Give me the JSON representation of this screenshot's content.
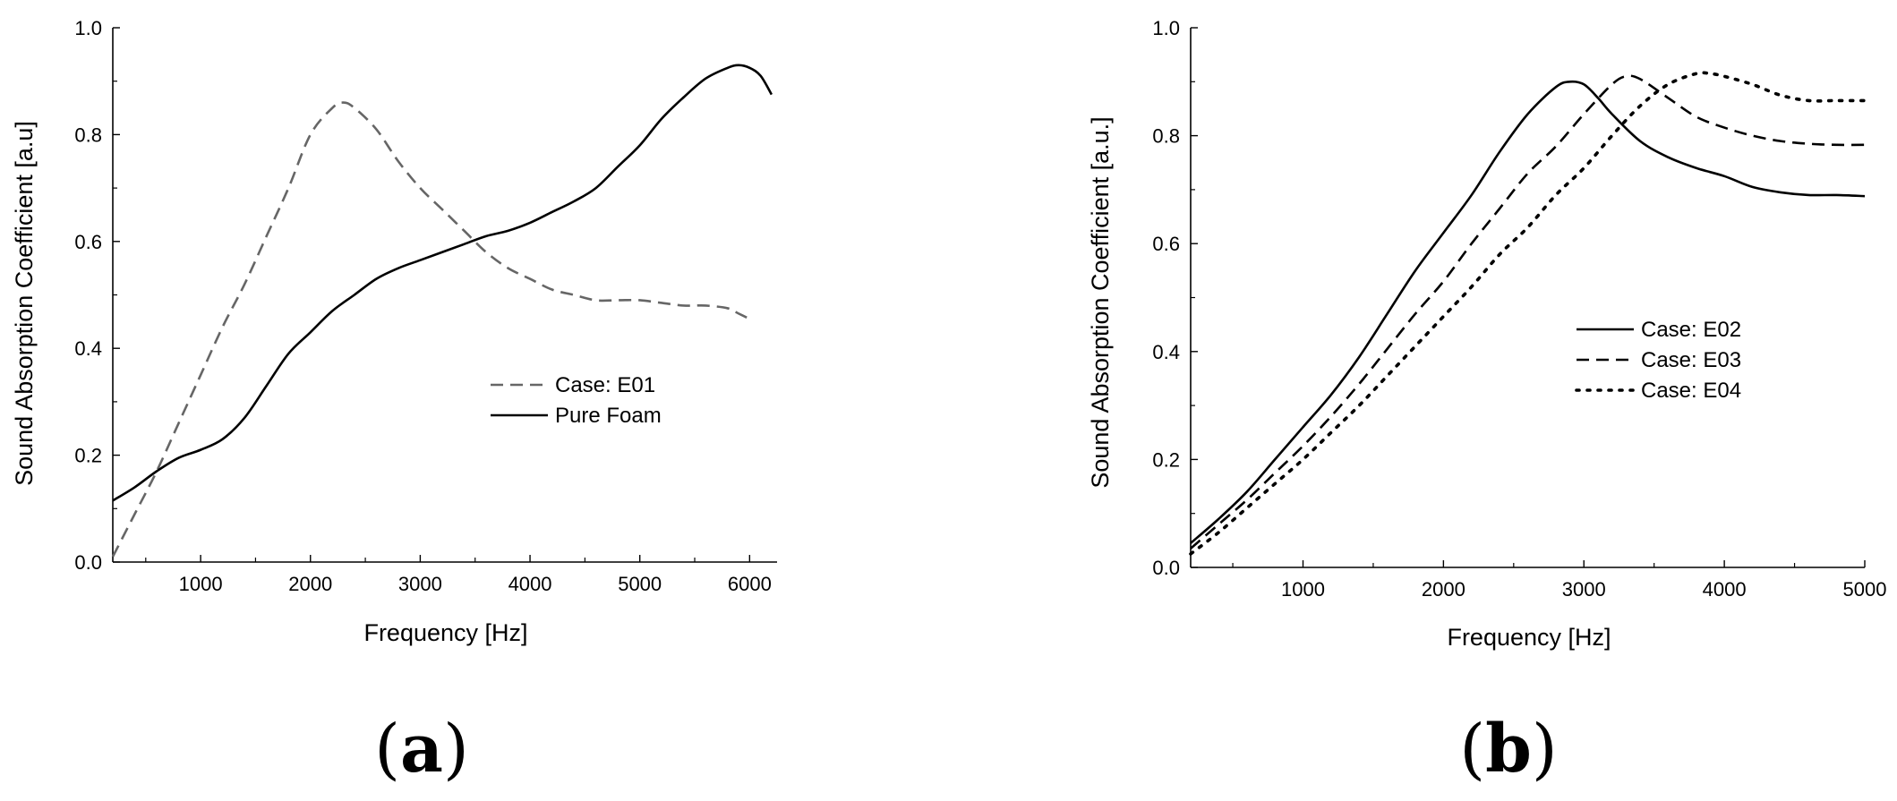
{
  "chart_data": [
    {
      "type": "line",
      "panel_label": {
        "open": "(",
        "letter": "a",
        "close": ")"
      },
      "xlabel": "Frequency [Hz]",
      "ylabel": "Sound Absorption Coefficient [a.u]",
      "xlim": [
        200,
        6250
      ],
      "ylim": [
        0,
        1.0
      ],
      "xticks": [
        1000,
        2000,
        3000,
        4000,
        5000,
        6000
      ],
      "yticks": [
        0.0,
        0.2,
        0.4,
        0.6,
        0.8,
        1.0
      ],
      "ytick_labels": [
        "0.0",
        "0.2",
        "0.4",
        "0.6",
        "0.8",
        "1.0"
      ],
      "grid": false,
      "legend_position": "center-right",
      "series": [
        {
          "name": "Case: E01",
          "style": "dashed",
          "color": "#666666",
          "x": [
            200,
            400,
            600,
            800,
            1000,
            1200,
            1400,
            1600,
            1800,
            2000,
            2200,
            2300,
            2400,
            2600,
            2800,
            3000,
            3200,
            3400,
            3600,
            3800,
            4000,
            4200,
            4400,
            4600,
            4800,
            5000,
            5200,
            5400,
            5600,
            5800,
            5900,
            6000
          ],
          "y": [
            0.01,
            0.09,
            0.17,
            0.26,
            0.35,
            0.44,
            0.52,
            0.61,
            0.7,
            0.8,
            0.85,
            0.86,
            0.85,
            0.81,
            0.75,
            0.7,
            0.66,
            0.62,
            0.58,
            0.55,
            0.53,
            0.51,
            0.5,
            0.49,
            0.49,
            0.49,
            0.485,
            0.48,
            0.48,
            0.475,
            0.465,
            0.455
          ]
        },
        {
          "name": "Pure Foam",
          "style": "solid",
          "color": "#000000",
          "x": [
            200,
            400,
            600,
            800,
            1000,
            1200,
            1400,
            1600,
            1800,
            2000,
            2200,
            2400,
            2600,
            2800,
            3000,
            3200,
            3400,
            3600,
            3800,
            4000,
            4200,
            4400,
            4600,
            4800,
            5000,
            5200,
            5400,
            5600,
            5800,
            5900,
            6000,
            6100,
            6200
          ],
          "y": [
            0.115,
            0.14,
            0.17,
            0.195,
            0.21,
            0.23,
            0.27,
            0.33,
            0.39,
            0.43,
            0.47,
            0.5,
            0.53,
            0.55,
            0.565,
            0.58,
            0.595,
            0.61,
            0.62,
            0.635,
            0.655,
            0.675,
            0.7,
            0.74,
            0.78,
            0.83,
            0.87,
            0.905,
            0.925,
            0.93,
            0.925,
            0.91,
            0.875
          ]
        }
      ]
    },
    {
      "type": "line",
      "panel_label": {
        "open": "(",
        "letter": "b",
        "close": ")"
      },
      "xlabel": "Frequency [Hz]",
      "ylabel": "Sound Absorption Coefficient [a.u.]",
      "xlim": [
        200,
        5000
      ],
      "ylim": [
        0,
        1.0
      ],
      "xticks": [
        1000,
        2000,
        3000,
        4000,
        5000
      ],
      "yticks": [
        0.0,
        0.2,
        0.4,
        0.6,
        0.8,
        1.0
      ],
      "ytick_labels": [
        "0.0",
        "0.2",
        "0.4",
        "0.6",
        "0.8",
        "1.0"
      ],
      "grid": false,
      "legend_position": "center-right",
      "series": [
        {
          "name": "Case: E02",
          "style": "solid",
          "color": "#000000",
          "x": [
            200,
            400,
            600,
            800,
            1000,
            1200,
            1400,
            1600,
            1800,
            2000,
            2200,
            2400,
            2600,
            2800,
            2900,
            3000,
            3100,
            3200,
            3400,
            3600,
            3800,
            4000,
            4200,
            4400,
            4600,
            4800,
            5000
          ],
          "y": [
            0.045,
            0.09,
            0.14,
            0.2,
            0.26,
            0.32,
            0.39,
            0.47,
            0.55,
            0.62,
            0.69,
            0.77,
            0.84,
            0.89,
            0.9,
            0.895,
            0.87,
            0.84,
            0.79,
            0.76,
            0.74,
            0.725,
            0.705,
            0.695,
            0.69,
            0.69,
            0.688
          ]
        },
        {
          "name": "Case: E03",
          "style": "dashed",
          "color": "#000000",
          "x": [
            200,
            400,
            600,
            800,
            1000,
            1200,
            1400,
            1600,
            1800,
            2000,
            2200,
            2400,
            2600,
            2800,
            3000,
            3200,
            3300,
            3400,
            3600,
            3800,
            4000,
            4200,
            4400,
            4600,
            4800,
            5000
          ],
          "y": [
            0.035,
            0.08,
            0.125,
            0.175,
            0.225,
            0.28,
            0.34,
            0.405,
            0.47,
            0.53,
            0.6,
            0.665,
            0.73,
            0.78,
            0.84,
            0.895,
            0.91,
            0.905,
            0.87,
            0.835,
            0.815,
            0.8,
            0.79,
            0.785,
            0.783,
            0.783
          ]
        },
        {
          "name": "Case: E04",
          "style": "dotted",
          "color": "#000000",
          "x": [
            200,
            400,
            600,
            800,
            1000,
            1200,
            1400,
            1600,
            1800,
            2000,
            2200,
            2400,
            2600,
            2800,
            3000,
            3200,
            3400,
            3600,
            3800,
            3900,
            4000,
            4200,
            4400,
            4600,
            4800,
            5000
          ],
          "y": [
            0.025,
            0.065,
            0.11,
            0.155,
            0.2,
            0.25,
            0.3,
            0.355,
            0.41,
            0.465,
            0.52,
            0.58,
            0.63,
            0.69,
            0.74,
            0.8,
            0.855,
            0.895,
            0.915,
            0.915,
            0.91,
            0.895,
            0.875,
            0.865,
            0.865,
            0.865
          ]
        }
      ]
    }
  ]
}
